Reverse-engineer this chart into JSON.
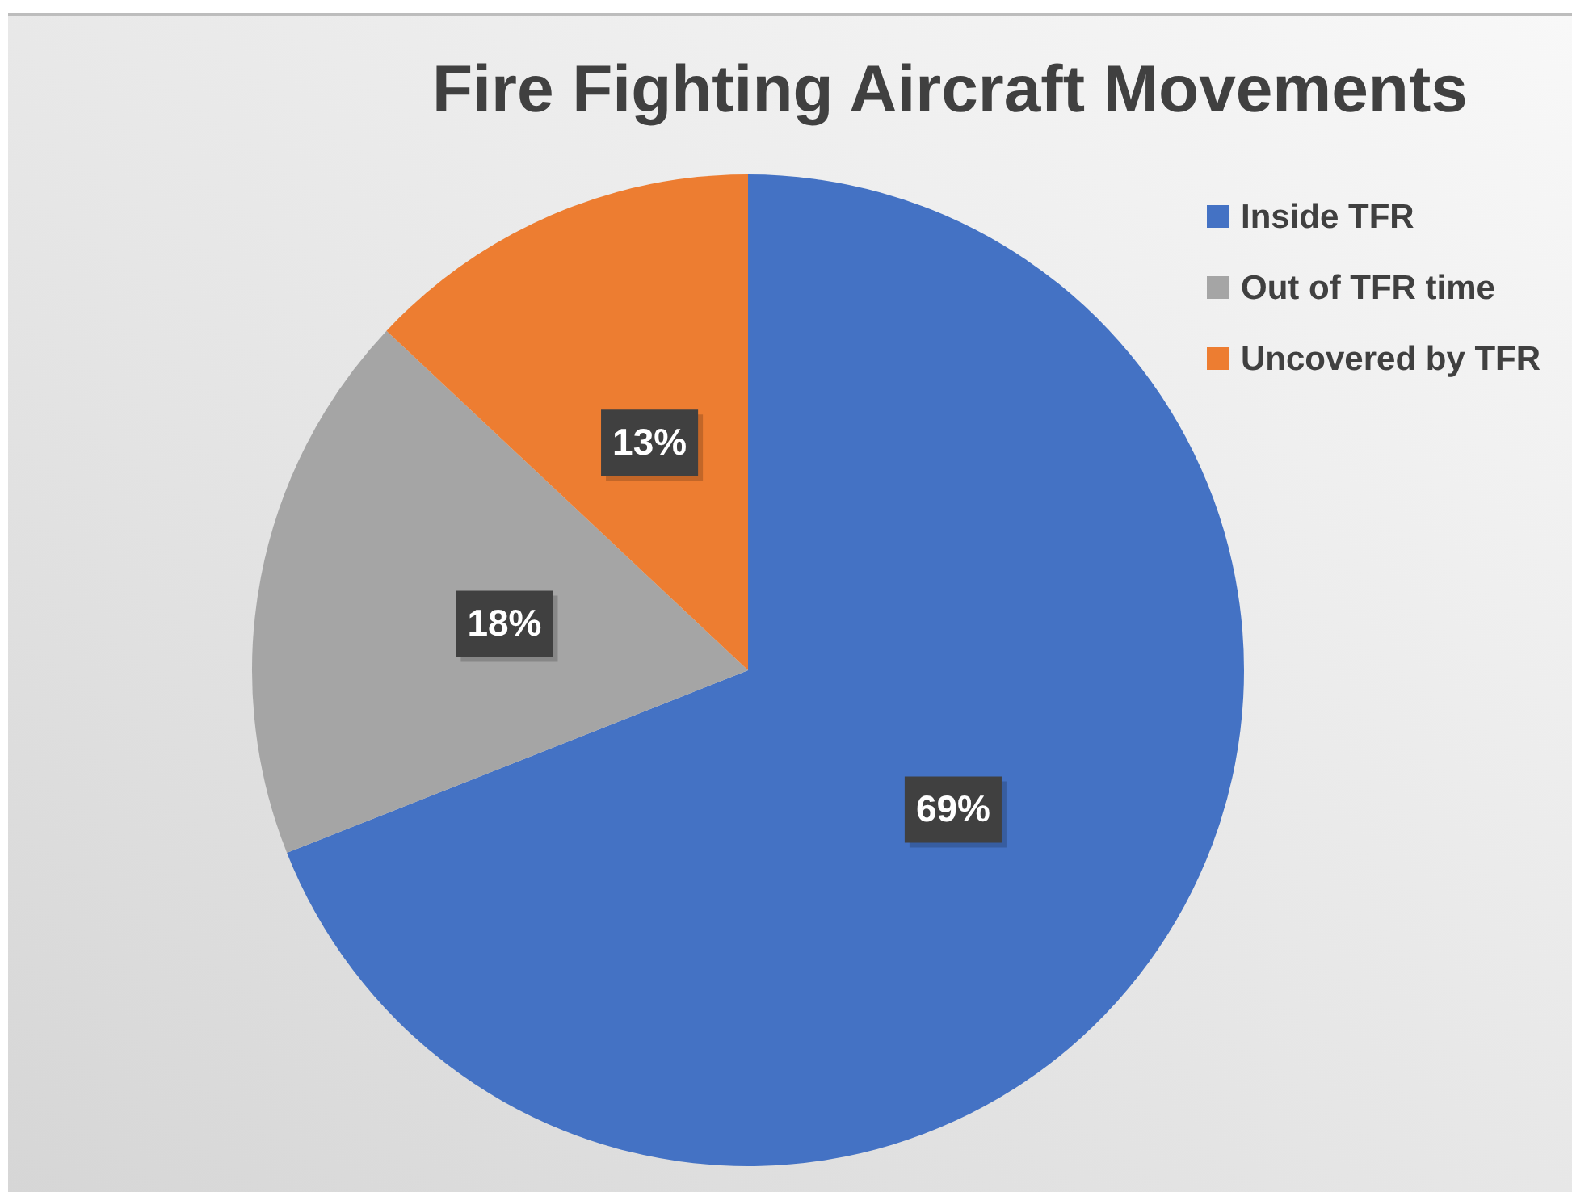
{
  "chart_data": {
    "type": "pie",
    "title": "Fire Fighting Aircraft Movements",
    "categories": [
      "Inside TFR",
      "Out of TFR time",
      "Uncovered by TFR"
    ],
    "values": [
      69,
      18,
      13
    ],
    "colors": [
      "#4472c4",
      "#a5a5a5",
      "#ed7d31"
    ],
    "value_labels": [
      "69%",
      "18%",
      "13%"
    ],
    "legend": "top right"
  }
}
